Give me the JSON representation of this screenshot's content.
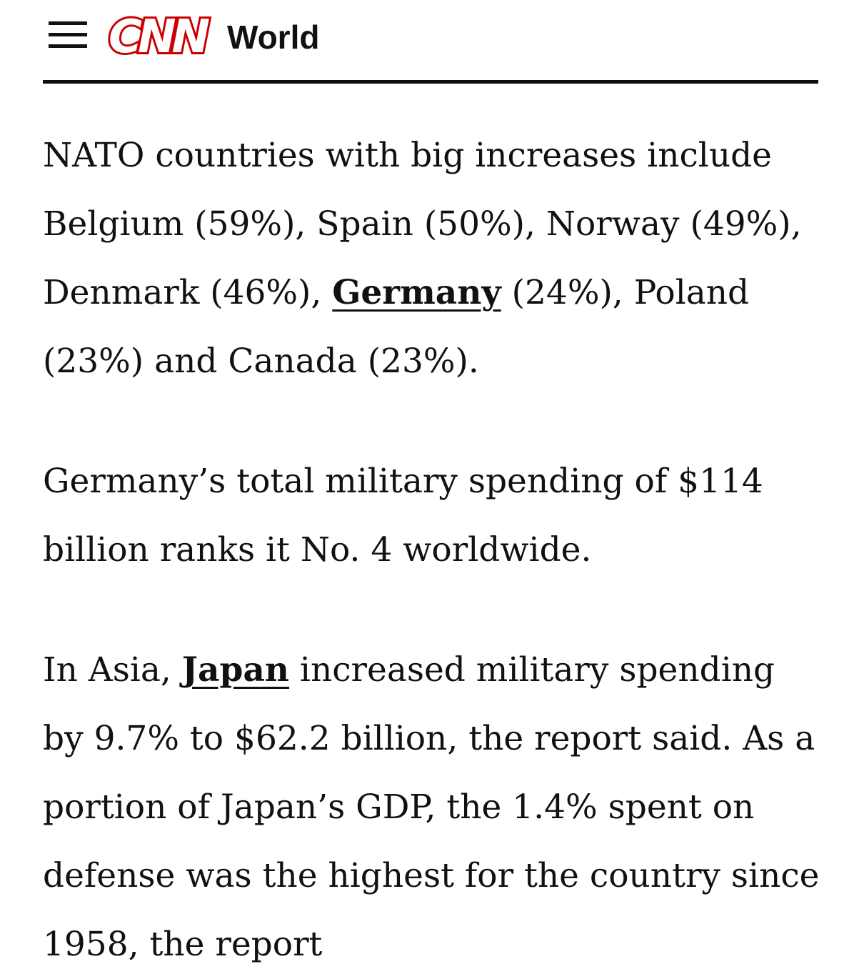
{
  "header": {
    "logo": "CNN",
    "section": "World"
  },
  "paragraphs": [
    {
      "runs": [
        {
          "text": "NATO countries with big increases include Belgium (59%), Spain (50%), Norway (49%), Denmark (46%), "
        },
        {
          "text": "Germany",
          "link": true
        },
        {
          "text": " (24%), Poland (23%) and Canada (23%)."
        }
      ]
    },
    {
      "runs": [
        {
          "text": "Germany’s total military spending of $114 billion ranks it No. 4 worldwide."
        }
      ]
    },
    {
      "runs": [
        {
          "text": "In Asia, "
        },
        {
          "text": "Japan",
          "link": true
        },
        {
          "text": " increased military spending by 9.7% to $62.2 billion, the report said. As a portion of Japan’s GDP, the 1.4% spent on defense was the highest for the country since 1958, the report"
        }
      ]
    }
  ]
}
